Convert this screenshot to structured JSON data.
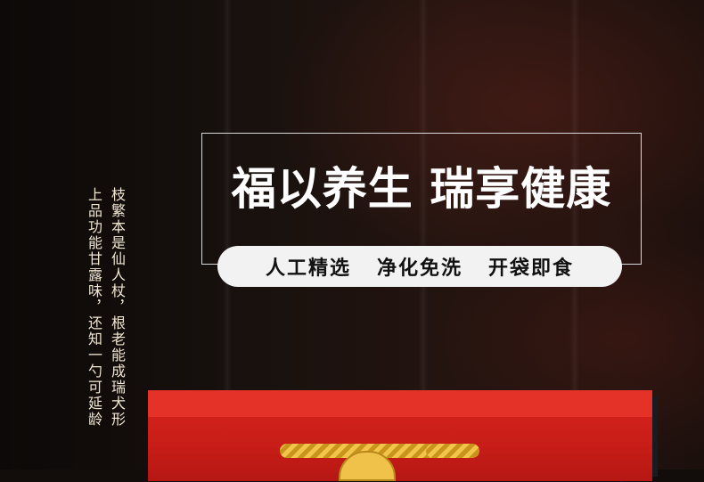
{
  "headline": "福以养生  瑞享健康",
  "tagline": "人工精选   净化免洗   开袋即食",
  "poem": {
    "col1": "枝繁本是仙人杖，根老能成瑞犬形",
    "col2": "上品功能甘露味，还知一勺可延龄"
  },
  "colors": {
    "background": "#120c0a",
    "bag_red": "#d9241f",
    "rope_gold": "#f2c54a"
  }
}
